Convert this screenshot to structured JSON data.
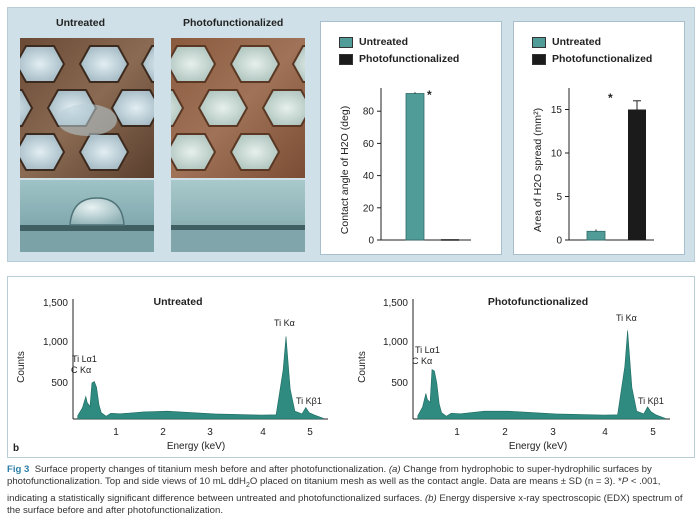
{
  "panel_a": {
    "photo_labels": [
      "Untreated",
      "Photofunctionalized"
    ],
    "contact_angle_chart": {
      "legend": [
        "Untreated",
        "Photofunctionalized"
      ],
      "ylabel": "Contact angle of H2O (deg)",
      "ticks": [
        "0",
        "20",
        "40",
        "60",
        "80"
      ],
      "marker": "*"
    },
    "spread_chart": {
      "legend": [
        "Untreated",
        "Photofunctionalized"
      ],
      "ylabel": "Area of H2O spread (mm²)",
      "ticks": [
        "0",
        "5",
        "10",
        "15"
      ],
      "marker": "*"
    }
  },
  "panel_b": {
    "label": "b",
    "charts": [
      {
        "title": "Untreated",
        "ylabel": "Counts",
        "xlabel": "Energy (keV)",
        "yticks": [
          "500",
          "1,000",
          "1,500"
        ],
        "xticks": [
          "1",
          "2",
          "3",
          "4",
          "5"
        ],
        "peaks": {
          "ti_la1": "Ti Lα1",
          "c_ka": "C Kα",
          "ti_ka": "Ti Kα",
          "ti_kb1": "Ti Kβ1"
        }
      },
      {
        "title": "Photofunctionalized",
        "ylabel": "Counts",
        "xlabel": "Energy (keV)",
        "yticks": [
          "500",
          "1,000",
          "1,500"
        ],
        "xticks": [
          "1",
          "2",
          "3",
          "4",
          "5"
        ],
        "peaks": {
          "ti_la1": "Ti Lα1",
          "c_ka": "C Kα",
          "ti_ka": "Ti Kα",
          "ti_kb1": "Ti Kβ1"
        }
      }
    ]
  },
  "caption": {
    "fig_label": "Fig 3",
    "text_1": "Surface property changes of titanium mesh before and after photofunctionalization.",
    "a_label": "(a)",
    "text_2": "Change from hydrophobic to super-hydrophilic surfaces by photofunctionalization. Top and side views of 10 mL ddH",
    "sub_2": "2",
    "text_3": "O placed on titanium mesh as well as the contact angle. Data are means ± SD (n = 3). *",
    "p_label": "P",
    "text_4": "< .001, indicating a statistically significant difference between untreated and photofunctionalized surfaces.",
    "b_label": "(b)",
    "text_5": "Energy dispersive x-ray spectroscopic (EDX) spectrum of the surface before and after photofunctionalization."
  },
  "colors": {
    "untreated": "#4f9c99",
    "photofunctionalized": "#1b1b1b",
    "spectrum": "#2f8a80",
    "caption_accent": "#2c7fa8"
  },
  "chart_data": [
    {
      "type": "bar",
      "categories": [
        "Untreated",
        "Photofunctionalized"
      ],
      "values": [
        91,
        0.5
      ],
      "errors": [
        0.8,
        0.2
      ],
      "ylabel": "Contact angle of H2O (deg)",
      "ylim": [
        0,
        100
      ],
      "annotations": [
        "*"
      ]
    },
    {
      "type": "bar",
      "categories": [
        "Untreated",
        "Photofunctionalized"
      ],
      "values": [
        1,
        15
      ],
      "errors": [
        0.2,
        1
      ],
      "ylabel": "Area of H2O spread (mm²)",
      "ylim": [
        0,
        17
      ],
      "annotations": [
        "*"
      ]
    },
    {
      "type": "line",
      "title": "Untreated",
      "xlabel": "Energy (keV)",
      "ylabel": "Counts",
      "xlim": [
        0,
        5.4
      ],
      "ylim": [
        0,
        1600
      ],
      "x": [
        0.1,
        0.2,
        0.27,
        0.3,
        0.36,
        0.4,
        0.45,
        0.5,
        0.55,
        0.6,
        0.7,
        0.8,
        1.0,
        1.5,
        2.0,
        3.0,
        4.0,
        4.3,
        4.45,
        4.51,
        4.6,
        4.7,
        4.85,
        4.93,
        5.0,
        5.1,
        5.3
      ],
      "y": [
        20,
        140,
        300,
        220,
        150,
        480,
        500,
        420,
        180,
        90,
        60,
        60,
        70,
        110,
        80,
        60,
        60,
        80,
        650,
        1100,
        400,
        80,
        60,
        160,
        110,
        40,
        10
      ]
    },
    {
      "type": "line",
      "title": "Photofunctionalized",
      "xlabel": "Energy (keV)",
      "ylabel": "Counts",
      "xlim": [
        0,
        5.4
      ],
      "ylim": [
        0,
        1600
      ],
      "x": [
        0.1,
        0.2,
        0.27,
        0.3,
        0.36,
        0.4,
        0.45,
        0.5,
        0.55,
        0.6,
        0.7,
        0.8,
        1.0,
        1.5,
        2.0,
        3.0,
        4.0,
        4.3,
        4.45,
        4.51,
        4.6,
        4.7,
        4.85,
        4.93,
        5.0,
        5.1,
        5.3
      ],
      "y": [
        20,
        150,
        340,
        260,
        220,
        660,
        640,
        480,
        200,
        90,
        60,
        60,
        70,
        120,
        80,
        60,
        60,
        80,
        700,
        1180,
        420,
        80,
        60,
        170,
        120,
        40,
        10
      ]
    }
  ]
}
